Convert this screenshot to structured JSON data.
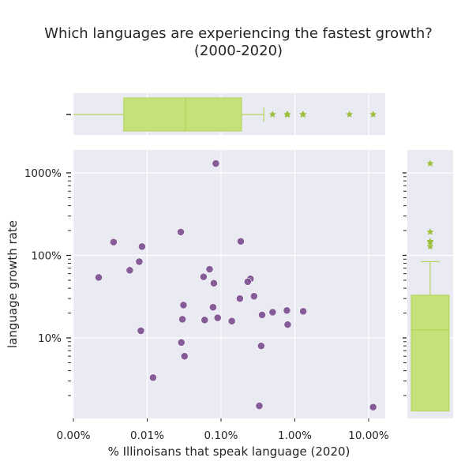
{
  "chart_data": {
    "type": "scatter",
    "title": "Which languages are experiencing the fastest growth?",
    "subtitle": "(2000-2020)",
    "xlabel": "% Illinoisans that speak language (2020)",
    "ylabel": "language growth rate",
    "x_scale": "log",
    "y_scale": "log",
    "xlim_percent": [
      0.001,
      19
    ],
    "ylim_percent": [
      1.3,
      1900
    ],
    "x_ticks": [
      {
        "value": 0.001,
        "label": "0.00%"
      },
      {
        "value": 0.01,
        "label": "0.01%"
      },
      {
        "value": 0.1,
        "label": "0.10%"
      },
      {
        "value": 1,
        "label": "1.00%"
      },
      {
        "value": 10,
        "label": "10.00%"
      }
    ],
    "y_ticks": [
      {
        "value": 10,
        "label": "10%"
      },
      {
        "value": 100,
        "label": "100%"
      },
      {
        "value": 1000,
        "label": "1000%"
      }
    ],
    "grid": true,
    "point_color": "#7b4c8e",
    "marginal_color": "#c5e17a",
    "marginal_edge_color": "#b4d45a",
    "background_color": "#eaeaf2",
    "points": [
      {
        "x": 0.085,
        "y": 1300
      },
      {
        "x": 0.0035,
        "y": 145
      },
      {
        "x": 0.0085,
        "y": 128
      },
      {
        "x": 0.0285,
        "y": 192
      },
      {
        "x": 0.185,
        "y": 148
      },
      {
        "x": 0.0022,
        "y": 54
      },
      {
        "x": 0.0078,
        "y": 84
      },
      {
        "x": 0.0058,
        "y": 66
      },
      {
        "x": 0.07,
        "y": 68
      },
      {
        "x": 0.058,
        "y": 55
      },
      {
        "x": 0.08,
        "y": 46
      },
      {
        "x": 0.25,
        "y": 52
      },
      {
        "x": 0.23,
        "y": 48
      },
      {
        "x": 0.28,
        "y": 32
      },
      {
        "x": 0.18,
        "y": 30
      },
      {
        "x": 0.031,
        "y": 25
      },
      {
        "x": 0.078,
        "y": 23.5
      },
      {
        "x": 0.5,
        "y": 20.5
      },
      {
        "x": 0.78,
        "y": 21.5
      },
      {
        "x": 1.3,
        "y": 21
      },
      {
        "x": 0.36,
        "y": 19
      },
      {
        "x": 0.09,
        "y": 17.5
      },
      {
        "x": 0.03,
        "y": 16.8
      },
      {
        "x": 0.06,
        "y": 16.5
      },
      {
        "x": 0.14,
        "y": 16
      },
      {
        "x": 0.8,
        "y": 14.5
      },
      {
        "x": 0.0082,
        "y": 12.2
      },
      {
        "x": 0.029,
        "y": 8.8
      },
      {
        "x": 0.35,
        "y": 8
      },
      {
        "x": 0.032,
        "y": 6
      },
      {
        "x": 0.012,
        "y": 3.3
      },
      {
        "x": 0.33,
        "y": 1.5
      },
      {
        "x": 11.5,
        "y": 1.45
      }
    ],
    "x_marginal_boxplot": {
      "whisker_low": 0.001,
      "q1": 0.0048,
      "median": 0.033,
      "q3": 0.19,
      "whisker_high": 0.38,
      "outliers": [
        0.5,
        0.78,
        0.8,
        1.28,
        1.3,
        5.5,
        11.5
      ]
    },
    "y_marginal_boxplot": {
      "whisker_low": 1.3,
      "q1": 1.3,
      "median": 12.5,
      "q3": 33,
      "whisker_high": 84,
      "outliers": [
        128,
        145,
        148,
        192,
        1300
      ]
    }
  }
}
